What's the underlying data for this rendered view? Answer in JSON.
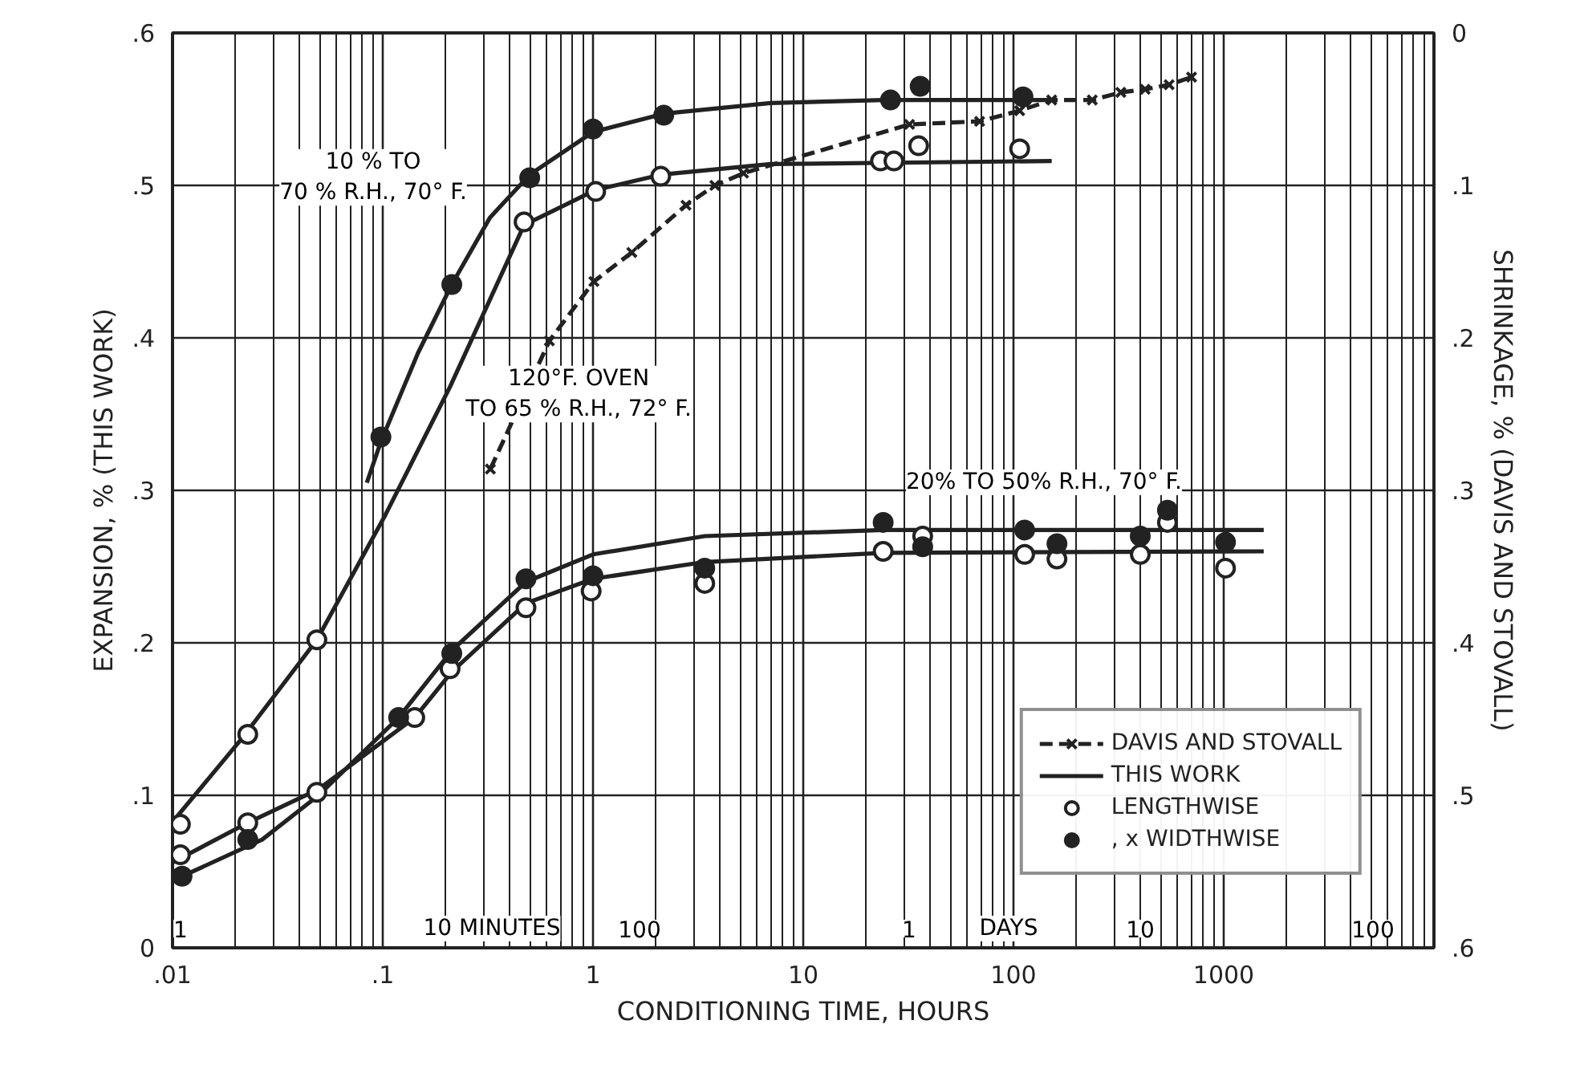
{
  "chart_data": {
    "type": "line",
    "xlabel": "CONDITIONING TIME, HOURS",
    "ylabel": "EXPANSION, % (THIS WORK)",
    "y2label": "SHRINKAGE, % (DAVIS AND STOVALL)",
    "log": "x",
    "grid": true,
    "legend": "bottom right",
    "xlim": [
      0.01,
      10000
    ],
    "xticks": [
      {
        "value": 0.01,
        "label": ".01"
      },
      {
        "value": 0.1,
        "label": ".1"
      },
      1,
      10,
      100,
      1000
    ],
    "ylim": [
      0,
      0.6
    ],
    "yticks": [
      0,
      {
        "value": 0.1,
        "label": ".1"
      },
      {
        "value": 0.2,
        "label": ".2"
      },
      {
        "value": 0.3,
        "label": ".3"
      },
      {
        "value": 0.4,
        "label": ".4"
      },
      {
        "value": 0.5,
        "label": ".5"
      },
      {
        "value": 0.6,
        "label": ".6"
      }
    ],
    "y2lim": [
      0.6,
      0
    ],
    "y2ticks": [
      0,
      {
        "value": 0.1,
        "label": ".1"
      },
      {
        "value": 0.2,
        "label": ".2"
      },
      {
        "value": 0.3,
        "label": ".3"
      },
      {
        "value": 0.4,
        "label": ".4"
      },
      {
        "value": 0.5,
        "label": ".5"
      },
      {
        "value": 0.6,
        "label": ".6"
      }
    ],
    "series": [
      {
        "name": "DAVIS AND STOVALL",
        "line_style": "dashed",
        "marker": "cross",
        "color": "#222222",
        "axis": "y2",
        "x": [
          0.325,
          0.62,
          1.01,
          1.53,
          2.77,
          3.8,
          5.2,
          32,
          69,
          107,
          152,
          237,
          324,
          423,
          550,
          703
        ],
        "values": [
          0.286,
          0.202,
          0.163,
          0.144,
          0.113,
          0.1,
          0.092,
          0.06,
          0.058,
          0.051,
          0.044,
          0.044,
          0.039,
          0.037,
          0.034,
          0.029
        ]
      },
      {
        "name": "THIS WORK",
        "line_style": "solid",
        "color": "#222222",
        "x": [
          0.084,
          0.098,
          0.147,
          0.213,
          0.324,
          0.5,
          1.0,
          2.17,
          7.0,
          24,
          152
        ],
        "values": [
          0.305,
          0.332,
          0.39,
          0.435,
          0.479,
          0.507,
          0.535,
          0.547,
          0.554,
          0.556,
          0.556
        ]
      },
      {
        "line_style": "solid",
        "color": "#222222",
        "x": [
          0.0102,
          0.0213,
          0.0486,
          0.103,
          0.209,
          0.47,
          1.03,
          2.1,
          7.0,
          152
        ],
        "values": [
          0.084,
          0.137,
          0.202,
          0.284,
          0.368,
          0.474,
          0.497,
          0.507,
          0.514,
          0.516
        ]
      },
      {
        "line_style": "solid",
        "color": "#222222",
        "x": [
          0.01,
          0.0267,
          0.0495,
          0.119,
          0.213,
          0.48,
          1.0,
          3.4,
          24,
          1550
        ],
        "values": [
          0.044,
          0.071,
          0.1,
          0.151,
          0.195,
          0.24,
          0.258,
          0.27,
          0.274,
          0.274
        ]
      },
      {
        "line_style": "solid",
        "color": "#222222",
        "x": [
          0.01,
          0.0228,
          0.0495,
          0.142,
          0.213,
          0.48,
          1.0,
          3.4,
          24,
          1550
        ],
        "values": [
          0.056,
          0.082,
          0.104,
          0.151,
          0.181,
          0.226,
          0.242,
          0.253,
          0.259,
          0.26
        ]
      },
      {
        "name": "LENGTHWISE",
        "type": "scatter",
        "marker": "circle",
        "color": "#ffffff",
        "x": [
          0.0109,
          0.0228,
          0.0486,
          0.47,
          1.03,
          2.1,
          23.3,
          27.0,
          35.4,
          107,
          0.0109,
          0.0228,
          0.0486,
          0.142,
          0.209,
          0.48,
          0.98,
          3.4,
          24,
          37,
          113,
          161,
          401,
          540,
          1020
        ],
        "values": [
          0.081,
          0.14,
          0.202,
          0.476,
          0.496,
          0.506,
          0.516,
          0.516,
          0.526,
          0.524,
          0.061,
          0.082,
          0.102,
          0.151,
          0.183,
          0.223,
          0.234,
          0.239,
          0.26,
          0.27,
          0.258,
          0.255,
          0.258,
          0.279,
          0.249
        ]
      },
      {
        "name": ", x WIDTHWISE",
        "type": "scatter",
        "marker": "circle",
        "color": "#222222",
        "x": [
          0.098,
          0.213,
          0.5,
          1.0,
          2.17,
          26,
          36,
          111,
          0.0111,
          0.0228,
          0.119,
          0.213,
          0.48,
          1.0,
          3.4,
          24,
          37,
          113,
          161,
          401,
          540,
          1020
        ],
        "values": [
          0.335,
          0.435,
          0.505,
          0.537,
          0.546,
          0.556,
          0.565,
          0.558,
          0.047,
          0.071,
          0.151,
          0.193,
          0.242,
          0.244,
          0.249,
          0.279,
          0.263,
          0.274,
          0.265,
          0.27,
          0.287,
          0.266
        ]
      }
    ],
    "annotations": [
      "10 % TO\n70 % R.H., 70° F.",
      "120°F. OVEN\nTO 65 % R.H., 72° F.",
      "20% TO 50% R.H., 70° F.",
      "1",
      "10 MINUTES",
      "100",
      "1",
      "DAYS",
      "10",
      "100"
    ]
  }
}
